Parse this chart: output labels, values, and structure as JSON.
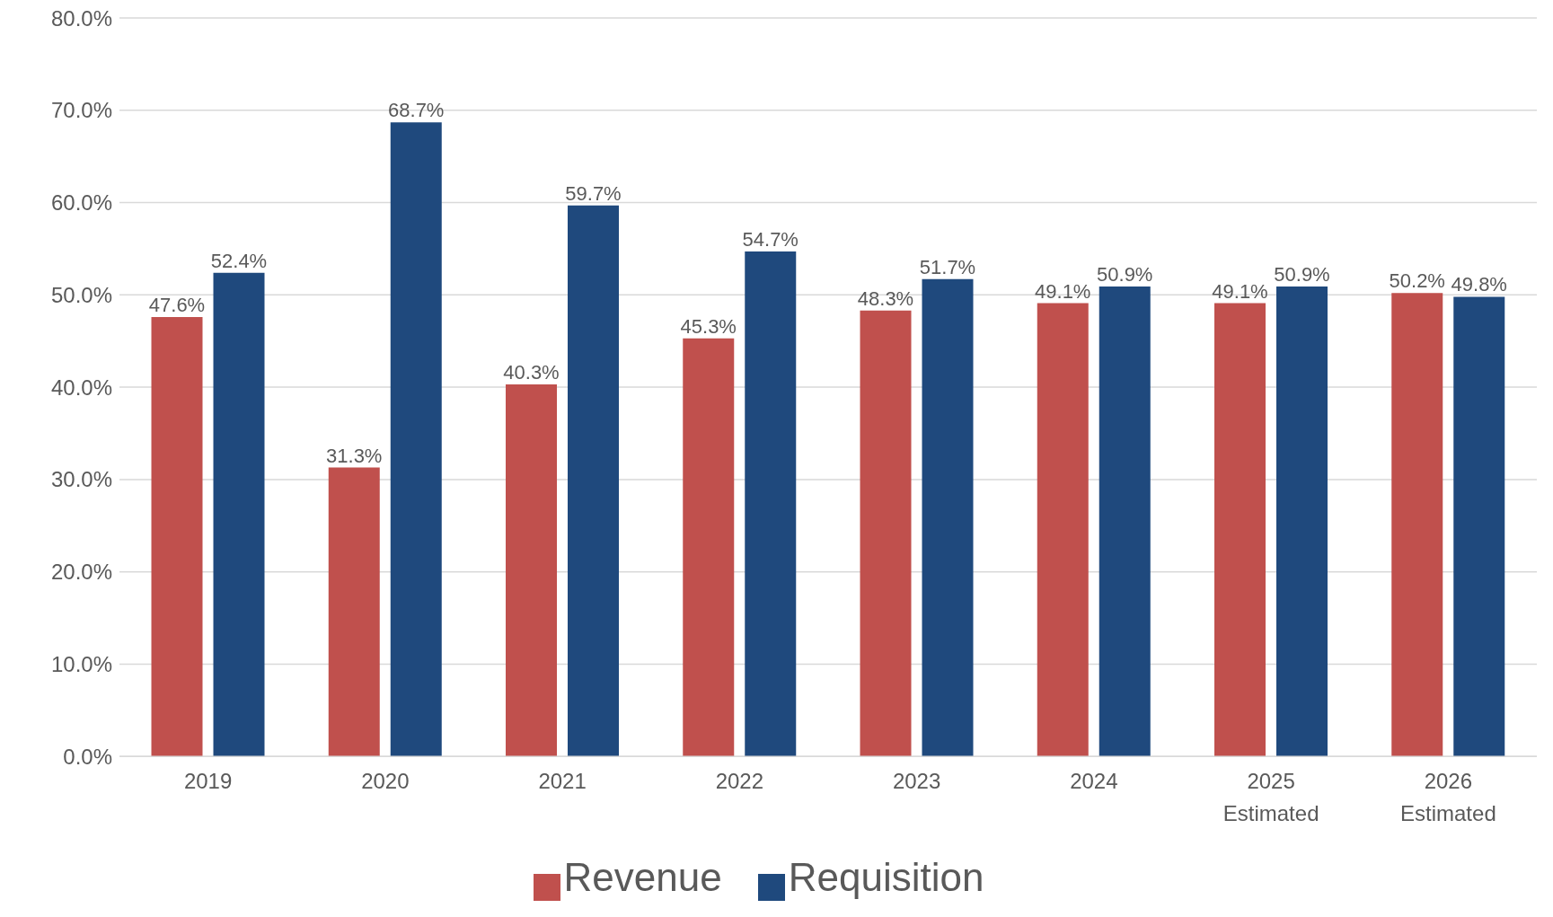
{
  "chart_data": {
    "type": "bar",
    "categories": [
      "2019",
      "2020",
      "2021",
      "2022",
      "2023",
      "2024",
      "2025\nEstimated",
      "2026\nEstimated"
    ],
    "series": [
      {
        "name": "Revenue",
        "color": "#c0504d",
        "values": [
          47.6,
          31.3,
          40.3,
          45.3,
          48.3,
          49.1,
          49.1,
          50.2
        ],
        "value_labels": [
          "47.6%",
          "31.3%",
          "40.3%",
          "45.3%",
          "48.3%",
          "49.1%",
          "49.1%",
          "50.2%"
        ]
      },
      {
        "name": "Requisition",
        "color": "#1f497d",
        "values": [
          52.4,
          68.7,
          59.7,
          54.7,
          51.7,
          50.9,
          50.9,
          49.8
        ],
        "value_labels": [
          "52.4%",
          "68.7%",
          "59.7%",
          "54.7%",
          "51.7%",
          "50.9%",
          "50.9%",
          "49.8%"
        ]
      }
    ],
    "ylim": [
      0,
      80
    ],
    "yticks": [
      {
        "value": 0,
        "label": "0.0%"
      },
      {
        "value": 10,
        "label": "10.0%"
      },
      {
        "value": 20,
        "label": "20.0%"
      },
      {
        "value": 30,
        "label": "30.0%"
      },
      {
        "value": 40,
        "label": "40.0%"
      },
      {
        "value": 50,
        "label": "50.0%"
      },
      {
        "value": 60,
        "label": "60.0%"
      },
      {
        "value": 70,
        "label": "70.0%"
      },
      {
        "value": 80,
        "label": "80.0%"
      }
    ],
    "grid": "y",
    "legend": "bottom"
  }
}
